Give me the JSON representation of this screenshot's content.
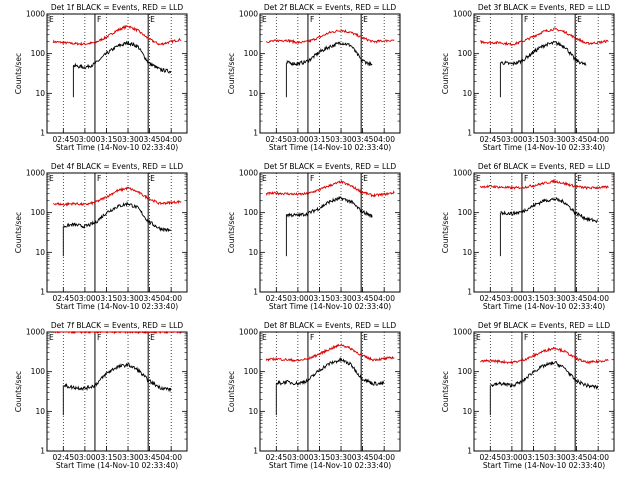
{
  "figure": {
    "colors": {
      "events": "#000000",
      "lld": "#dd0000",
      "axes": "#000000"
    },
    "xlabel": "Start Time (14-Nov-10 02:33:40)",
    "ylabel": "Counts/sec",
    "x_tick_labels": [
      "02:45",
      "03:00",
      "03:15",
      "03:30",
      "03:45",
      "04:00"
    ],
    "y_tick_labels": [
      "1",
      "10",
      "100",
      "1000"
    ]
  },
  "chart_data": [
    {
      "type": "line",
      "title": "Det 1f BLACK = Events, RED = LLD",
      "xlim": [
        "02:33:40",
        "04:11"
      ],
      "ylim": [
        1,
        1000
      ],
      "yscale": "log",
      "markers": [
        {
          "label": "E",
          "x": "02:33:40"
        },
        {
          "label": "F",
          "x": "03:07"
        },
        {
          "label": "E",
          "x": "03:44"
        }
      ],
      "x": [
        "02:38",
        "02:45",
        "02:52",
        "03:00",
        "03:07",
        "03:15",
        "03:22",
        "03:30",
        "03:37",
        "03:44",
        "03:52",
        "04:00",
        "04:07"
      ],
      "series": [
        {
          "name": "LLD",
          "values": [
            200,
            190,
            180,
            175,
            190,
            260,
            380,
            500,
            380,
            240,
            170,
            200,
            230
          ]
        },
        {
          "name": "Events",
          "values": [
            null,
            null,
            50,
            45,
            55,
            100,
            150,
            190,
            150,
            60,
            40,
            35,
            null
          ]
        }
      ]
    },
    {
      "type": "line",
      "title": "Det 2f BLACK = Events, RED = LLD",
      "xlim": [
        "02:33:40",
        "04:11"
      ],
      "ylim": [
        1,
        1000
      ],
      "yscale": "log",
      "markers": [
        {
          "label": "E",
          "x": "02:33:40"
        },
        {
          "label": "F",
          "x": "03:07"
        },
        {
          "label": "E",
          "x": "03:44"
        }
      ],
      "x": [
        "02:38",
        "02:45",
        "02:52",
        "03:00",
        "03:07",
        "03:15",
        "03:22",
        "03:30",
        "03:37",
        "03:44",
        "03:52",
        "04:00",
        "04:07"
      ],
      "series": [
        {
          "name": "LLD",
          "values": [
            200,
            210,
            220,
            190,
            200,
            260,
            340,
            390,
            340,
            260,
            200,
            210,
            220
          ]
        },
        {
          "name": "Events",
          "values": [
            null,
            null,
            60,
            55,
            65,
            110,
            150,
            190,
            160,
            70,
            50,
            null,
            null
          ]
        }
      ]
    },
    {
      "type": "line",
      "title": "Det 3f BLACK = Events, RED = LLD",
      "xlim": [
        "02:33:40",
        "04:11"
      ],
      "ylim": [
        1,
        1000
      ],
      "yscale": "log",
      "markers": [
        {
          "label": "E",
          "x": "02:33:40"
        },
        {
          "label": "F",
          "x": "03:07"
        },
        {
          "label": "E",
          "x": "03:44"
        }
      ],
      "x": [
        "02:38",
        "02:45",
        "02:52",
        "03:00",
        "03:07",
        "03:15",
        "03:22",
        "03:30",
        "03:37",
        "03:44",
        "03:52",
        "04:00",
        "04:07"
      ],
      "series": [
        {
          "name": "LLD",
          "values": [
            200,
            190,
            190,
            170,
            200,
            270,
            360,
            420,
            350,
            250,
            180,
            190,
            210
          ]
        },
        {
          "name": "Events",
          "values": [
            null,
            null,
            60,
            55,
            65,
            110,
            160,
            190,
            150,
            70,
            50,
            null,
            null
          ]
        }
      ]
    },
    {
      "type": "line",
      "title": "Det 4f BLACK = Events, RED = LLD",
      "xlim": [
        "02:33:40",
        "04:11"
      ],
      "ylim": [
        1,
        1000
      ],
      "yscale": "log",
      "markers": [
        {
          "label": "E",
          "x": "02:33:40"
        },
        {
          "label": "F",
          "x": "03:07"
        },
        {
          "label": "E",
          "x": "03:44"
        }
      ],
      "x": [
        "02:38",
        "02:45",
        "02:52",
        "03:00",
        "03:07",
        "03:15",
        "03:22",
        "03:30",
        "03:37",
        "03:44",
        "03:52",
        "04:00",
        "04:07"
      ],
      "series": [
        {
          "name": "LLD",
          "values": [
            170,
            160,
            170,
            160,
            180,
            250,
            350,
            420,
            330,
            230,
            170,
            180,
            190
          ]
        },
        {
          "name": "Events",
          "values": [
            null,
            45,
            50,
            45,
            55,
            100,
            140,
            170,
            130,
            60,
            40,
            35,
            null
          ]
        }
      ]
    },
    {
      "type": "line",
      "title": "Det 5f BLACK = Events, RED = LLD",
      "xlim": [
        "02:33:40",
        "04:11"
      ],
      "ylim": [
        1,
        1000
      ],
      "yscale": "log",
      "markers": [
        {
          "label": "E",
          "x": "02:33:40"
        },
        {
          "label": "F",
          "x": "03:07"
        },
        {
          "label": "E",
          "x": "03:44"
        }
      ],
      "x": [
        "02:38",
        "02:45",
        "02:52",
        "03:00",
        "03:07",
        "03:15",
        "03:22",
        "03:30",
        "03:37",
        "03:44",
        "03:52",
        "04:00",
        "04:07"
      ],
      "series": [
        {
          "name": "LLD",
          "values": [
            300,
            310,
            300,
            290,
            300,
            380,
            480,
            600,
            470,
            340,
            270,
            290,
            320
          ]
        },
        {
          "name": "Events",
          "values": [
            null,
            null,
            90,
            85,
            95,
            130,
            190,
            230,
            190,
            110,
            80,
            null,
            null
          ]
        }
      ]
    },
    {
      "type": "line",
      "title": "Det 6f BLACK = Events, RED = LLD",
      "xlim": [
        "02:33:40",
        "04:11"
      ],
      "ylim": [
        1,
        1000
      ],
      "yscale": "log",
      "markers": [
        {
          "label": "E",
          "x": "02:33:40"
        },
        {
          "label": "F",
          "x": "03:07"
        },
        {
          "label": "E",
          "x": "03:44"
        }
      ],
      "x": [
        "02:38",
        "02:45",
        "02:52",
        "03:00",
        "03:07",
        "03:15",
        "03:22",
        "03:30",
        "03:37",
        "03:44",
        "03:52",
        "04:00",
        "04:07"
      ],
      "series": [
        {
          "name": "LLD",
          "values": [
            450,
            460,
            440,
            420,
            430,
            480,
            550,
            620,
            540,
            460,
            420,
            430,
            440
          ]
        },
        {
          "name": "Events",
          "values": [
            null,
            null,
            100,
            95,
            105,
            150,
            200,
            220,
            180,
            100,
            70,
            60,
            null
          ]
        }
      ]
    },
    {
      "type": "line",
      "title": "Det 7f BLACK = Events, RED = LLD",
      "xlim": [
        "02:33:40",
        "04:11"
      ],
      "ylim": [
        1,
        1000
      ],
      "yscale": "log",
      "markers": [
        {
          "label": "E",
          "x": "02:33:40"
        },
        {
          "label": "F",
          "x": "03:07"
        },
        {
          "label": "E",
          "x": "03:44"
        }
      ],
      "x": [
        "02:38",
        "02:45",
        "02:52",
        "03:00",
        "03:07",
        "03:15",
        "03:22",
        "03:30",
        "03:37",
        "03:44",
        "03:52",
        "04:00",
        "04:07"
      ],
      "series": [
        {
          "name": "LLD",
          "values": [
            1000,
            1000,
            1000,
            1000,
            1000,
            1000,
            1000,
            1000,
            1000,
            1000,
            1000,
            1000,
            1000
          ]
        },
        {
          "name": "Events",
          "values": [
            null,
            45,
            40,
            38,
            45,
            90,
            130,
            150,
            110,
            60,
            40,
            35,
            null
          ]
        }
      ]
    },
    {
      "type": "line",
      "title": "Det 8f BLACK = Events, RED = LLD",
      "xlim": [
        "02:33:40",
        "04:11"
      ],
      "ylim": [
        1,
        1000
      ],
      "yscale": "log",
      "markers": [
        {
          "label": "E",
          "x": "02:33:40"
        },
        {
          "label": "F",
          "x": "03:07"
        },
        {
          "label": "E",
          "x": "03:44"
        }
      ],
      "x": [
        "02:38",
        "02:45",
        "02:52",
        "03:00",
        "03:07",
        "03:15",
        "03:22",
        "03:30",
        "03:37",
        "03:44",
        "03:52",
        "04:00",
        "04:07"
      ],
      "series": [
        {
          "name": "LLD",
          "values": [
            200,
            210,
            200,
            190,
            210,
            280,
            370,
            480,
            380,
            260,
            200,
            210,
            230
          ]
        },
        {
          "name": "Events",
          "values": [
            null,
            50,
            55,
            50,
            60,
            110,
            160,
            200,
            150,
            70,
            50,
            50,
            null
          ]
        }
      ]
    },
    {
      "type": "line",
      "title": "Det 9f BLACK = Events, RED = LLD",
      "xlim": [
        "02:33:40",
        "04:11"
      ],
      "ylim": [
        1,
        1000
      ],
      "yscale": "log",
      "markers": [
        {
          "label": "E",
          "x": "02:33:40"
        },
        {
          "label": "F",
          "x": "03:07"
        },
        {
          "label": "E",
          "x": "03:44"
        }
      ],
      "x": [
        "02:38",
        "02:45",
        "02:52",
        "03:00",
        "03:07",
        "03:15",
        "03:22",
        "03:30",
        "03:37",
        "03:44",
        "03:52",
        "04:00",
        "04:07"
      ],
      "series": [
        {
          "name": "LLD",
          "values": [
            180,
            190,
            180,
            170,
            190,
            250,
            330,
            400,
            320,
            220,
            170,
            180,
            200
          ]
        },
        {
          "name": "Events",
          "values": [
            null,
            45,
            50,
            45,
            55,
            100,
            140,
            170,
            120,
            60,
            45,
            40,
            null
          ]
        }
      ]
    }
  ]
}
